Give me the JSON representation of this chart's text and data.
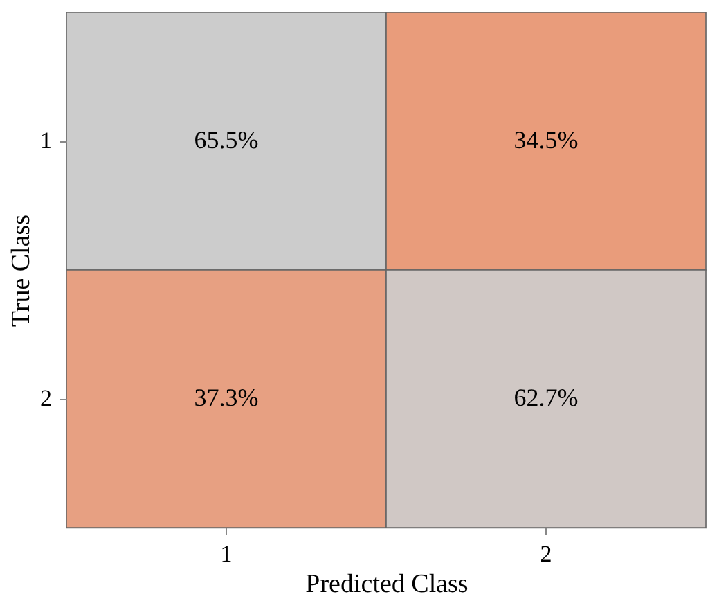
{
  "chart_data": {
    "type": "heatmap",
    "xlabel": "Predicted Class",
    "ylabel": "True Class",
    "categories": [
      "1",
      "2"
    ],
    "y_categories": [
      "1",
      "2"
    ],
    "cells": [
      [
        65.5,
        34.5
      ],
      [
        37.3,
        62.7
      ]
    ],
    "cell_labels": [
      [
        "65.5%",
        "34.5%"
      ],
      [
        "37.3%",
        "62.7%"
      ]
    ],
    "colors": [
      "#e99c7b",
      "#cccccc"
    ]
  }
}
